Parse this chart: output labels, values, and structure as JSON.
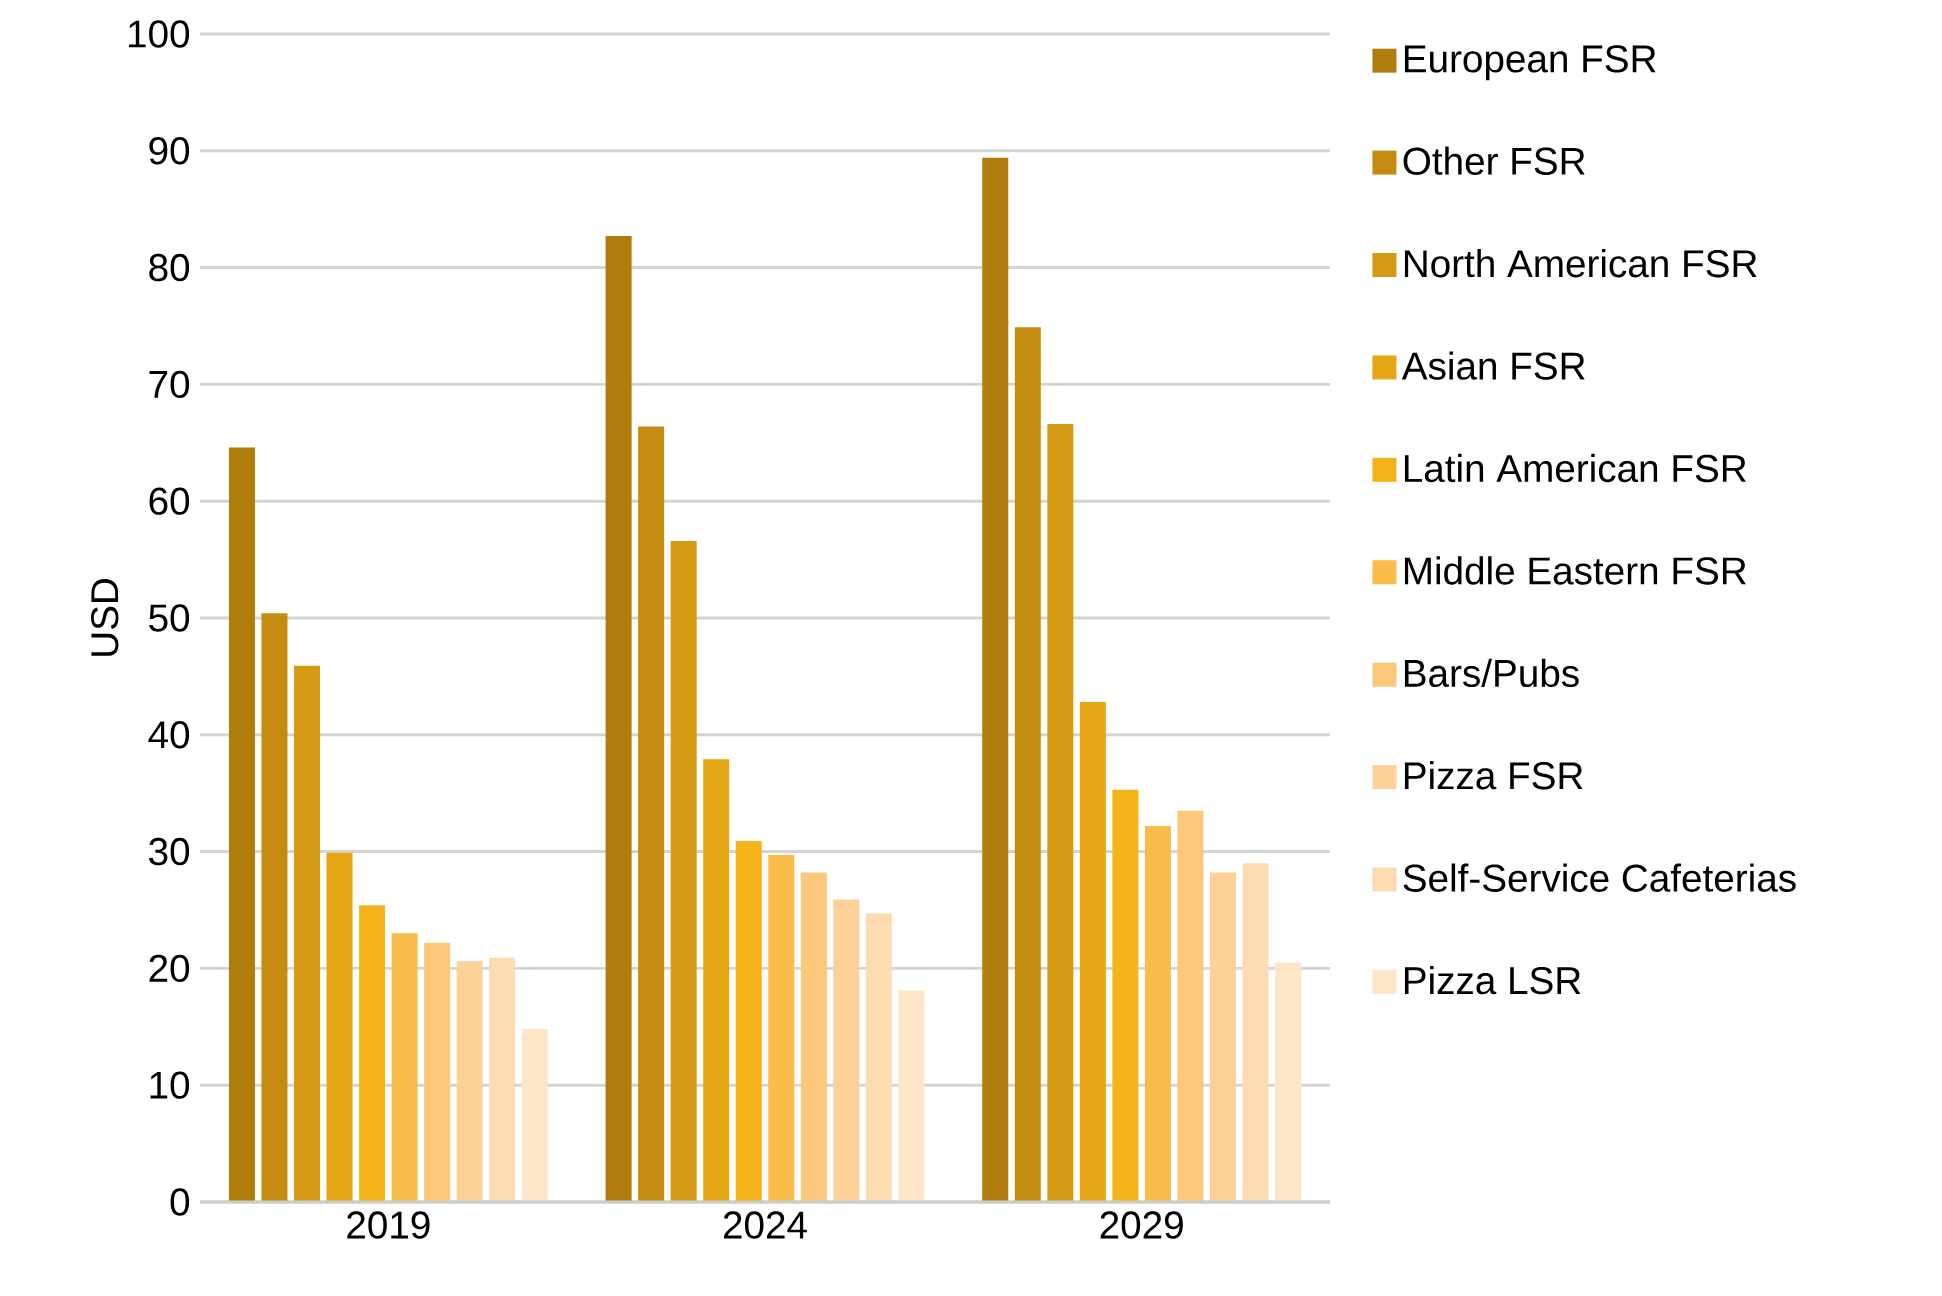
{
  "chart_data": {
    "type": "bar",
    "ylabel": "USD",
    "categories": [
      "2019",
      "2024",
      "2029"
    ],
    "series": [
      {
        "name": "European FSR",
        "color": "#b07c0c",
        "values": [
          64.6,
          82.7,
          89.4
        ]
      },
      {
        "name": "Other FSR",
        "color": "#c48c10",
        "values": [
          50.4,
          66.4,
          74.9
        ]
      },
      {
        "name": "North American FSR",
        "color": "#d59b14",
        "values": [
          45.9,
          56.6,
          66.6
        ]
      },
      {
        "name": "Asian FSR",
        "color": "#e6a716",
        "values": [
          29.9,
          37.9,
          42.8
        ]
      },
      {
        "name": "Latin American FSR",
        "color": "#f4b21b",
        "values": [
          25.4,
          30.9,
          35.3
        ]
      },
      {
        "name": "Middle Eastern FSR",
        "color": "#f9bb4a",
        "values": [
          23.0,
          29.7,
          32.2
        ]
      },
      {
        "name": "Bars/Pubs",
        "color": "#fbc77a",
        "values": [
          22.2,
          28.2,
          33.5
        ]
      },
      {
        "name": "Pizza FSR",
        "color": "#fcd197",
        "values": [
          20.6,
          25.9,
          28.2
        ]
      },
      {
        "name": "Self-Service Cafeterias",
        "color": "#fddbb0",
        "values": [
          20.9,
          24.7,
          29.0
        ]
      },
      {
        "name": "Pizza LSR",
        "color": "#fde5c8",
        "values": [
          14.8,
          18.1,
          20.5
        ]
      }
    ],
    "ylim": [
      0,
      100
    ],
    "yticks": [
      0,
      10,
      20,
      30,
      40,
      50,
      60,
      70,
      80,
      90,
      100
    ],
    "grid": "y",
    "legend": "right"
  }
}
